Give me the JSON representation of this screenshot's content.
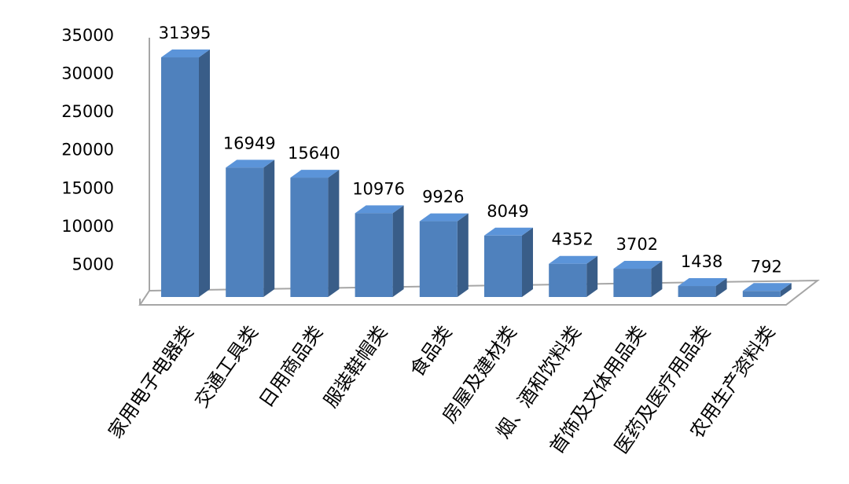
{
  "chart_data": {
    "type": "bar",
    "categories": [
      "家用电子电器类",
      "交通工具类",
      "日用商品类",
      "服装鞋帽类",
      "食品类",
      "房屋及建材类",
      "烟、酒和饮料类",
      "首饰及文体用品类",
      "医药及医疗用品类",
      "农用生产资料类"
    ],
    "values": [
      31395,
      16949,
      15640,
      10976,
      9926,
      8049,
      4352,
      3702,
      1438,
      792
    ],
    "color": "#4f81bd",
    "ylim": [
      0,
      35000
    ],
    "yticks": [
      5000,
      10000,
      15000,
      20000,
      25000,
      30000,
      35000
    ]
  }
}
